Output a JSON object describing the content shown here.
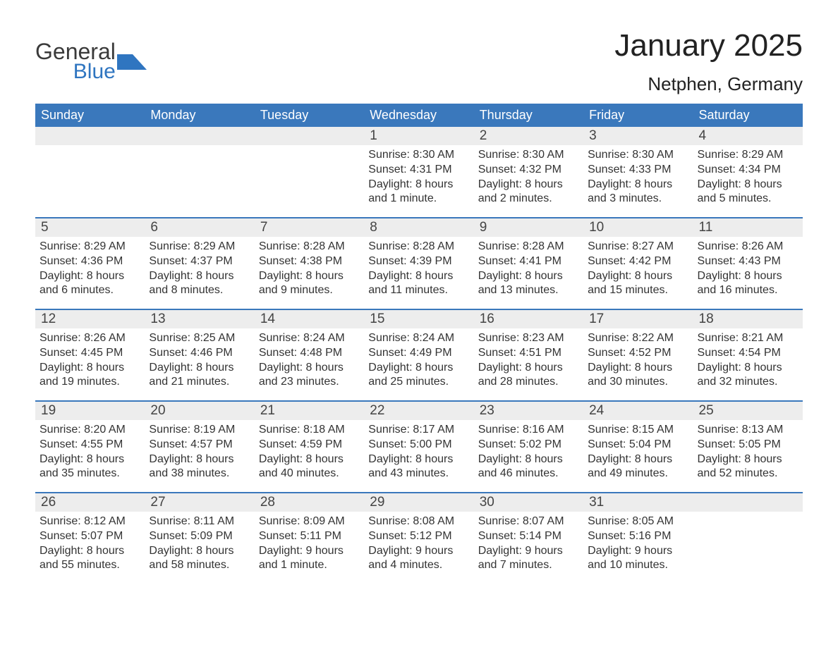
{
  "branding": {
    "word1": "General",
    "word2": "Blue",
    "word1_color": "#3a3a3a",
    "word2_color": "#2f75c0",
    "flag_color": "#2f75c0"
  },
  "header": {
    "title": "January 2025",
    "location": "Netphen, Germany"
  },
  "styling": {
    "header_bg": "#3a78bc",
    "header_text": "#ffffff",
    "daynum_bg": "#ededed",
    "row_divider": "#3a78bc",
    "body_text": "#333333",
    "page_bg": "#ffffff",
    "title_fontsize": 44,
    "location_fontsize": 26,
    "dayhead_fontsize": 18,
    "daynum_fontsize": 19,
    "body_fontsize": 16
  },
  "day_headers": [
    "Sunday",
    "Monday",
    "Tuesday",
    "Wednesday",
    "Thursday",
    "Friday",
    "Saturday"
  ],
  "weeks": [
    [
      {
        "n": "",
        "sunrise": "",
        "sunset": "",
        "daylight1": "",
        "daylight2": ""
      },
      {
        "n": "",
        "sunrise": "",
        "sunset": "",
        "daylight1": "",
        "daylight2": ""
      },
      {
        "n": "",
        "sunrise": "",
        "sunset": "",
        "daylight1": "",
        "daylight2": ""
      },
      {
        "n": "1",
        "sunrise": "Sunrise: 8:30 AM",
        "sunset": "Sunset: 4:31 PM",
        "daylight1": "Daylight: 8 hours",
        "daylight2": "and 1 minute."
      },
      {
        "n": "2",
        "sunrise": "Sunrise: 8:30 AM",
        "sunset": "Sunset: 4:32 PM",
        "daylight1": "Daylight: 8 hours",
        "daylight2": "and 2 minutes."
      },
      {
        "n": "3",
        "sunrise": "Sunrise: 8:30 AM",
        "sunset": "Sunset: 4:33 PM",
        "daylight1": "Daylight: 8 hours",
        "daylight2": "and 3 minutes."
      },
      {
        "n": "4",
        "sunrise": "Sunrise: 8:29 AM",
        "sunset": "Sunset: 4:34 PM",
        "daylight1": "Daylight: 8 hours",
        "daylight2": "and 5 minutes."
      }
    ],
    [
      {
        "n": "5",
        "sunrise": "Sunrise: 8:29 AM",
        "sunset": "Sunset: 4:36 PM",
        "daylight1": "Daylight: 8 hours",
        "daylight2": "and 6 minutes."
      },
      {
        "n": "6",
        "sunrise": "Sunrise: 8:29 AM",
        "sunset": "Sunset: 4:37 PM",
        "daylight1": "Daylight: 8 hours",
        "daylight2": "and 8 minutes."
      },
      {
        "n": "7",
        "sunrise": "Sunrise: 8:28 AM",
        "sunset": "Sunset: 4:38 PM",
        "daylight1": "Daylight: 8 hours",
        "daylight2": "and 9 minutes."
      },
      {
        "n": "8",
        "sunrise": "Sunrise: 8:28 AM",
        "sunset": "Sunset: 4:39 PM",
        "daylight1": "Daylight: 8 hours",
        "daylight2": "and 11 minutes."
      },
      {
        "n": "9",
        "sunrise": "Sunrise: 8:28 AM",
        "sunset": "Sunset: 4:41 PM",
        "daylight1": "Daylight: 8 hours",
        "daylight2": "and 13 minutes."
      },
      {
        "n": "10",
        "sunrise": "Sunrise: 8:27 AM",
        "sunset": "Sunset: 4:42 PM",
        "daylight1": "Daylight: 8 hours",
        "daylight2": "and 15 minutes."
      },
      {
        "n": "11",
        "sunrise": "Sunrise: 8:26 AM",
        "sunset": "Sunset: 4:43 PM",
        "daylight1": "Daylight: 8 hours",
        "daylight2": "and 16 minutes."
      }
    ],
    [
      {
        "n": "12",
        "sunrise": "Sunrise: 8:26 AM",
        "sunset": "Sunset: 4:45 PM",
        "daylight1": "Daylight: 8 hours",
        "daylight2": "and 19 minutes."
      },
      {
        "n": "13",
        "sunrise": "Sunrise: 8:25 AM",
        "sunset": "Sunset: 4:46 PM",
        "daylight1": "Daylight: 8 hours",
        "daylight2": "and 21 minutes."
      },
      {
        "n": "14",
        "sunrise": "Sunrise: 8:24 AM",
        "sunset": "Sunset: 4:48 PM",
        "daylight1": "Daylight: 8 hours",
        "daylight2": "and 23 minutes."
      },
      {
        "n": "15",
        "sunrise": "Sunrise: 8:24 AM",
        "sunset": "Sunset: 4:49 PM",
        "daylight1": "Daylight: 8 hours",
        "daylight2": "and 25 minutes."
      },
      {
        "n": "16",
        "sunrise": "Sunrise: 8:23 AM",
        "sunset": "Sunset: 4:51 PM",
        "daylight1": "Daylight: 8 hours",
        "daylight2": "and 28 minutes."
      },
      {
        "n": "17",
        "sunrise": "Sunrise: 8:22 AM",
        "sunset": "Sunset: 4:52 PM",
        "daylight1": "Daylight: 8 hours",
        "daylight2": "and 30 minutes."
      },
      {
        "n": "18",
        "sunrise": "Sunrise: 8:21 AM",
        "sunset": "Sunset: 4:54 PM",
        "daylight1": "Daylight: 8 hours",
        "daylight2": "and 32 minutes."
      }
    ],
    [
      {
        "n": "19",
        "sunrise": "Sunrise: 8:20 AM",
        "sunset": "Sunset: 4:55 PM",
        "daylight1": "Daylight: 8 hours",
        "daylight2": "and 35 minutes."
      },
      {
        "n": "20",
        "sunrise": "Sunrise: 8:19 AM",
        "sunset": "Sunset: 4:57 PM",
        "daylight1": "Daylight: 8 hours",
        "daylight2": "and 38 minutes."
      },
      {
        "n": "21",
        "sunrise": "Sunrise: 8:18 AM",
        "sunset": "Sunset: 4:59 PM",
        "daylight1": "Daylight: 8 hours",
        "daylight2": "and 40 minutes."
      },
      {
        "n": "22",
        "sunrise": "Sunrise: 8:17 AM",
        "sunset": "Sunset: 5:00 PM",
        "daylight1": "Daylight: 8 hours",
        "daylight2": "and 43 minutes."
      },
      {
        "n": "23",
        "sunrise": "Sunrise: 8:16 AM",
        "sunset": "Sunset: 5:02 PM",
        "daylight1": "Daylight: 8 hours",
        "daylight2": "and 46 minutes."
      },
      {
        "n": "24",
        "sunrise": "Sunrise: 8:15 AM",
        "sunset": "Sunset: 5:04 PM",
        "daylight1": "Daylight: 8 hours",
        "daylight2": "and 49 minutes."
      },
      {
        "n": "25",
        "sunrise": "Sunrise: 8:13 AM",
        "sunset": "Sunset: 5:05 PM",
        "daylight1": "Daylight: 8 hours",
        "daylight2": "and 52 minutes."
      }
    ],
    [
      {
        "n": "26",
        "sunrise": "Sunrise: 8:12 AM",
        "sunset": "Sunset: 5:07 PM",
        "daylight1": "Daylight: 8 hours",
        "daylight2": "and 55 minutes."
      },
      {
        "n": "27",
        "sunrise": "Sunrise: 8:11 AM",
        "sunset": "Sunset: 5:09 PM",
        "daylight1": "Daylight: 8 hours",
        "daylight2": "and 58 minutes."
      },
      {
        "n": "28",
        "sunrise": "Sunrise: 8:09 AM",
        "sunset": "Sunset: 5:11 PM",
        "daylight1": "Daylight: 9 hours",
        "daylight2": "and 1 minute."
      },
      {
        "n": "29",
        "sunrise": "Sunrise: 8:08 AM",
        "sunset": "Sunset: 5:12 PM",
        "daylight1": "Daylight: 9 hours",
        "daylight2": "and 4 minutes."
      },
      {
        "n": "30",
        "sunrise": "Sunrise: 8:07 AM",
        "sunset": "Sunset: 5:14 PM",
        "daylight1": "Daylight: 9 hours",
        "daylight2": "and 7 minutes."
      },
      {
        "n": "31",
        "sunrise": "Sunrise: 8:05 AM",
        "sunset": "Sunset: 5:16 PM",
        "daylight1": "Daylight: 9 hours",
        "daylight2": "and 10 minutes."
      },
      {
        "n": "",
        "sunrise": "",
        "sunset": "",
        "daylight1": "",
        "daylight2": ""
      }
    ]
  ]
}
